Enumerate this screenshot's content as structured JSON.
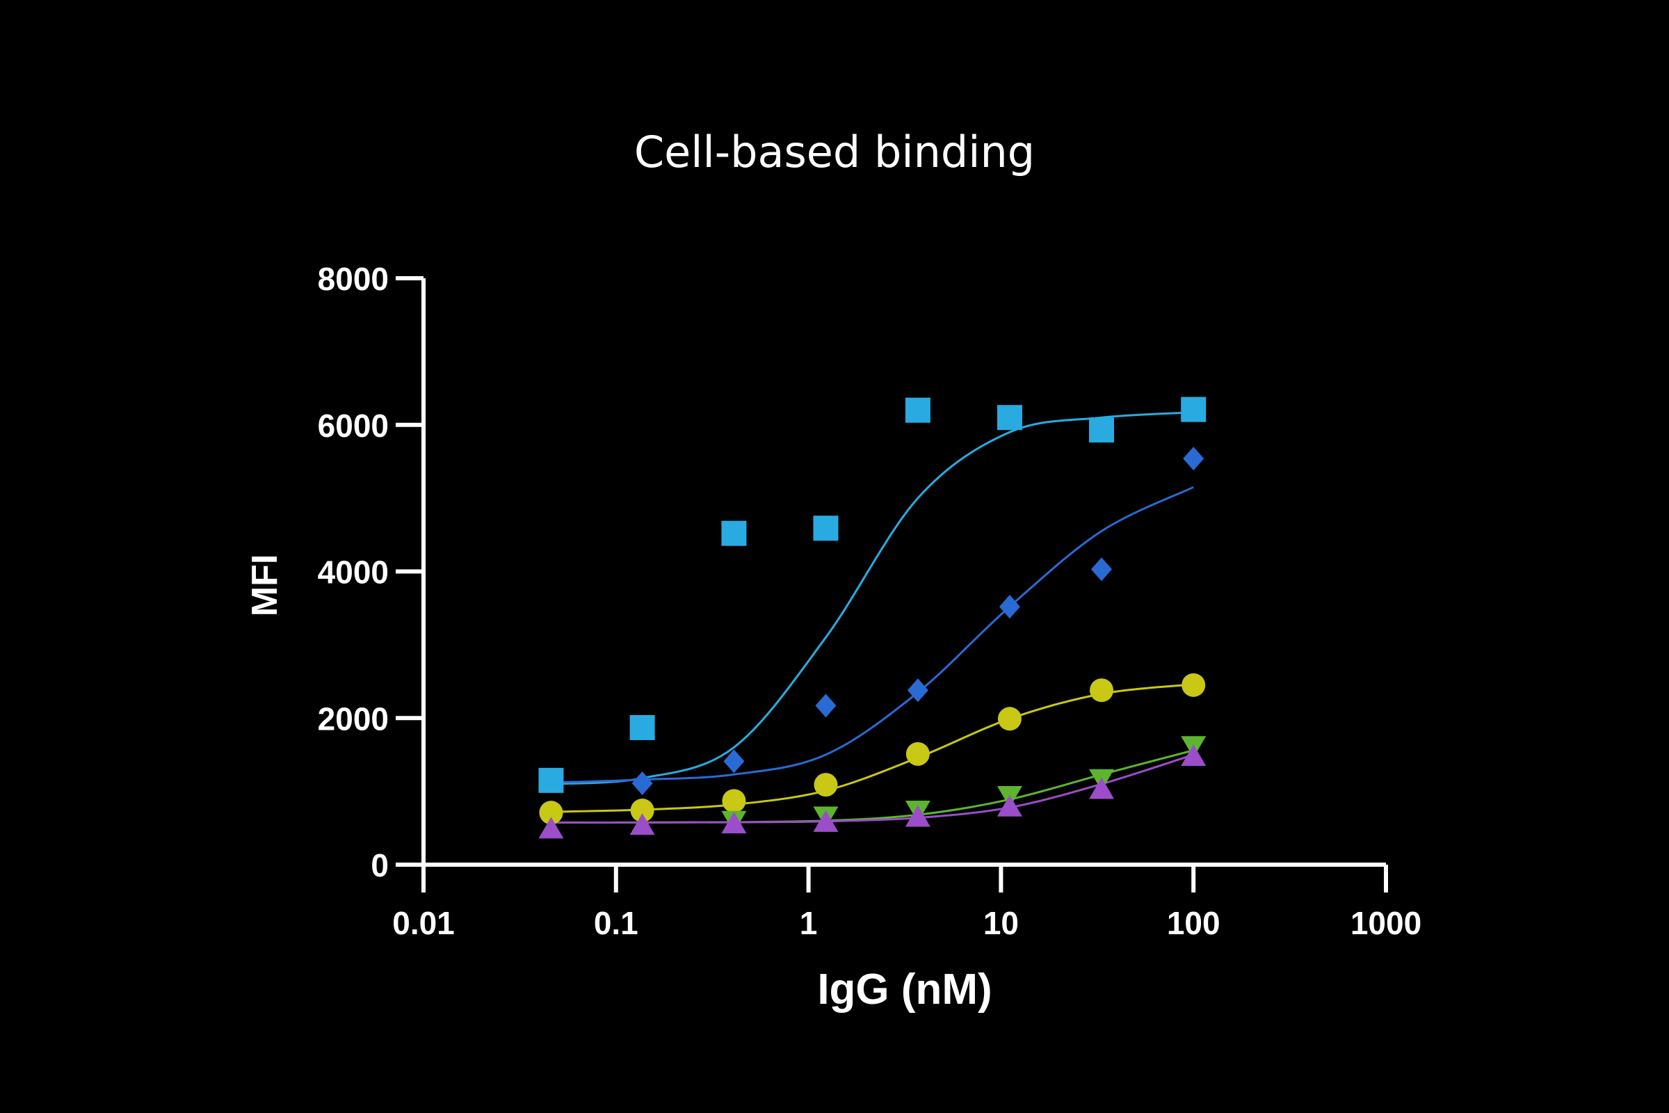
{
  "chart_data": {
    "type": "scatter",
    "title": "Cell-based binding",
    "xlabel": "IgG (nM)",
    "ylabel": "MFI",
    "xscale": "log",
    "xlim": [
      0.01,
      1000
    ],
    "ylim": [
      0,
      8000
    ],
    "xticks": [
      0.01,
      0.1,
      1,
      10,
      100,
      1000
    ],
    "xtick_labels": [
      "0.01",
      "0.1",
      "1",
      "10",
      "100",
      "1000"
    ],
    "yticks": [
      0,
      2000,
      4000,
      6000,
      8000
    ],
    "ytick_labels": [
      "0",
      "2000",
      "4000",
      "6000",
      "8000"
    ],
    "grid": false,
    "legend": "none",
    "x": [
      0.046,
      0.137,
      0.41,
      1.23,
      3.7,
      11.1,
      33.3,
      100
    ],
    "series": [
      {
        "marker": "square",
        "color": "#29ABE2",
        "values": [
          1150,
          1870,
          4520,
          4590,
          6200,
          6100,
          5930,
          6210
        ],
        "fit": [
          1100,
          1180,
          1600,
          3100,
          5000,
          5900,
          6100,
          6170
        ]
      },
      {
        "marker": "diamond",
        "color": "#2A6AD4",
        "values": [
          null,
          1110,
          1410,
          2170,
          2380,
          3520,
          4030,
          5540
        ],
        "fit": [
          1120,
          1160,
          1230,
          1500,
          2350,
          3520,
          4550,
          5150
        ]
      },
      {
        "marker": "circle",
        "color": "#C8C815",
        "values": [
          710,
          740,
          870,
          1090,
          1510,
          1990,
          2380,
          2450
        ],
        "fit": [
          720,
          750,
          820,
          1010,
          1460,
          1990,
          2330,
          2460
        ]
      },
      {
        "marker": "triangle-down",
        "color": "#5DB52F",
        "values": [
          null,
          null,
          600,
          660,
          740,
          940,
          1170,
          1620
        ],
        "fit": [
          575,
          575,
          580,
          600,
          680,
          890,
          1230,
          1560
        ]
      },
      {
        "marker": "triangle-up",
        "color": "#9B4DCA",
        "values": [
          490,
          540,
          560,
          580,
          650,
          790,
          1030,
          1480
        ],
        "fit": [
          575,
          575,
          578,
          590,
          640,
          780,
          1100,
          1500
        ]
      }
    ]
  }
}
